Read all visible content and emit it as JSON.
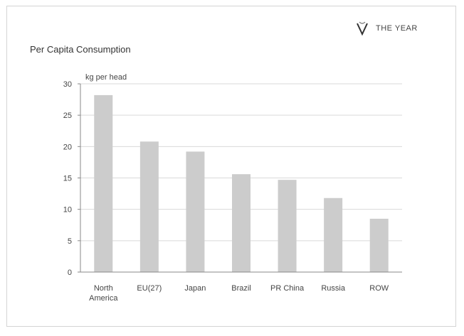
{
  "logo": {
    "text_left": "THE",
    "text_faded": "",
    "text_right": "YEAR"
  },
  "chart_data": {
    "type": "bar",
    "title": "Per Capita Consumption",
    "ylabel": "kg per head",
    "xlabel": "",
    "categories": [
      "North America",
      "EU(27)",
      "Japan",
      "Brazil",
      "PR China",
      "Russia",
      "ROW"
    ],
    "values": [
      28.2,
      20.8,
      19.2,
      15.6,
      14.7,
      11.8,
      8.5
    ],
    "ylim": [
      0,
      30
    ],
    "yticks": [
      0,
      5,
      10,
      15,
      20,
      25,
      30
    ],
    "grid": true,
    "bar_color": "#cccccc",
    "grid_color": "#d9d9d9"
  }
}
